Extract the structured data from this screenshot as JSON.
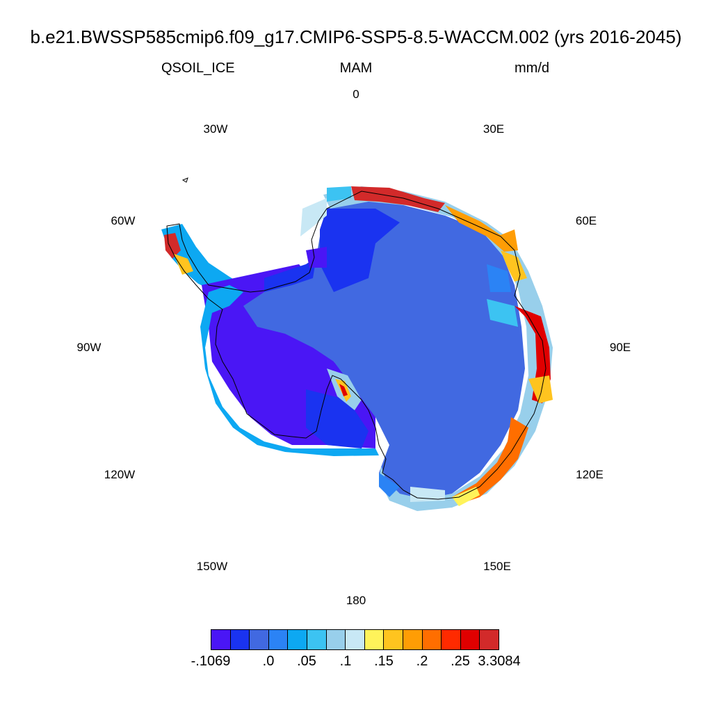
{
  "title": "b.e21.BWSSP585cmip6.f09_g17.CMIP6-SSP5-8.5-WACCM.002 (yrs 2016-2045)",
  "variable": "QSOIL_ICE",
  "season": "MAM",
  "units": "mm/d",
  "longitude_labels": [
    "0",
    "30E",
    "60E",
    "90E",
    "120E",
    "150E",
    "180",
    "150W",
    "120W",
    "90W",
    "60W",
    "30W"
  ],
  "colorbar": {
    "colors": [
      "#4a16f5",
      "#1a33f0",
      "#4169e1",
      "#2b83f5",
      "#0da8f2",
      "#3cc3f2",
      "#98cfeb",
      "#c8e8f5",
      "#fff35a",
      "#ffc41f",
      "#ff9d05",
      "#ff6e00",
      "#ff2a00",
      "#e00000",
      "#d22a2a"
    ],
    "labels": [
      "-.1069",
      ".0",
      ".05",
      ".1",
      ".15",
      ".2",
      ".25",
      "3.3084"
    ]
  },
  "map": {
    "projection": "south-polar stereographic",
    "continent": "Antarctica",
    "background_field_color": "#4169e1"
  }
}
